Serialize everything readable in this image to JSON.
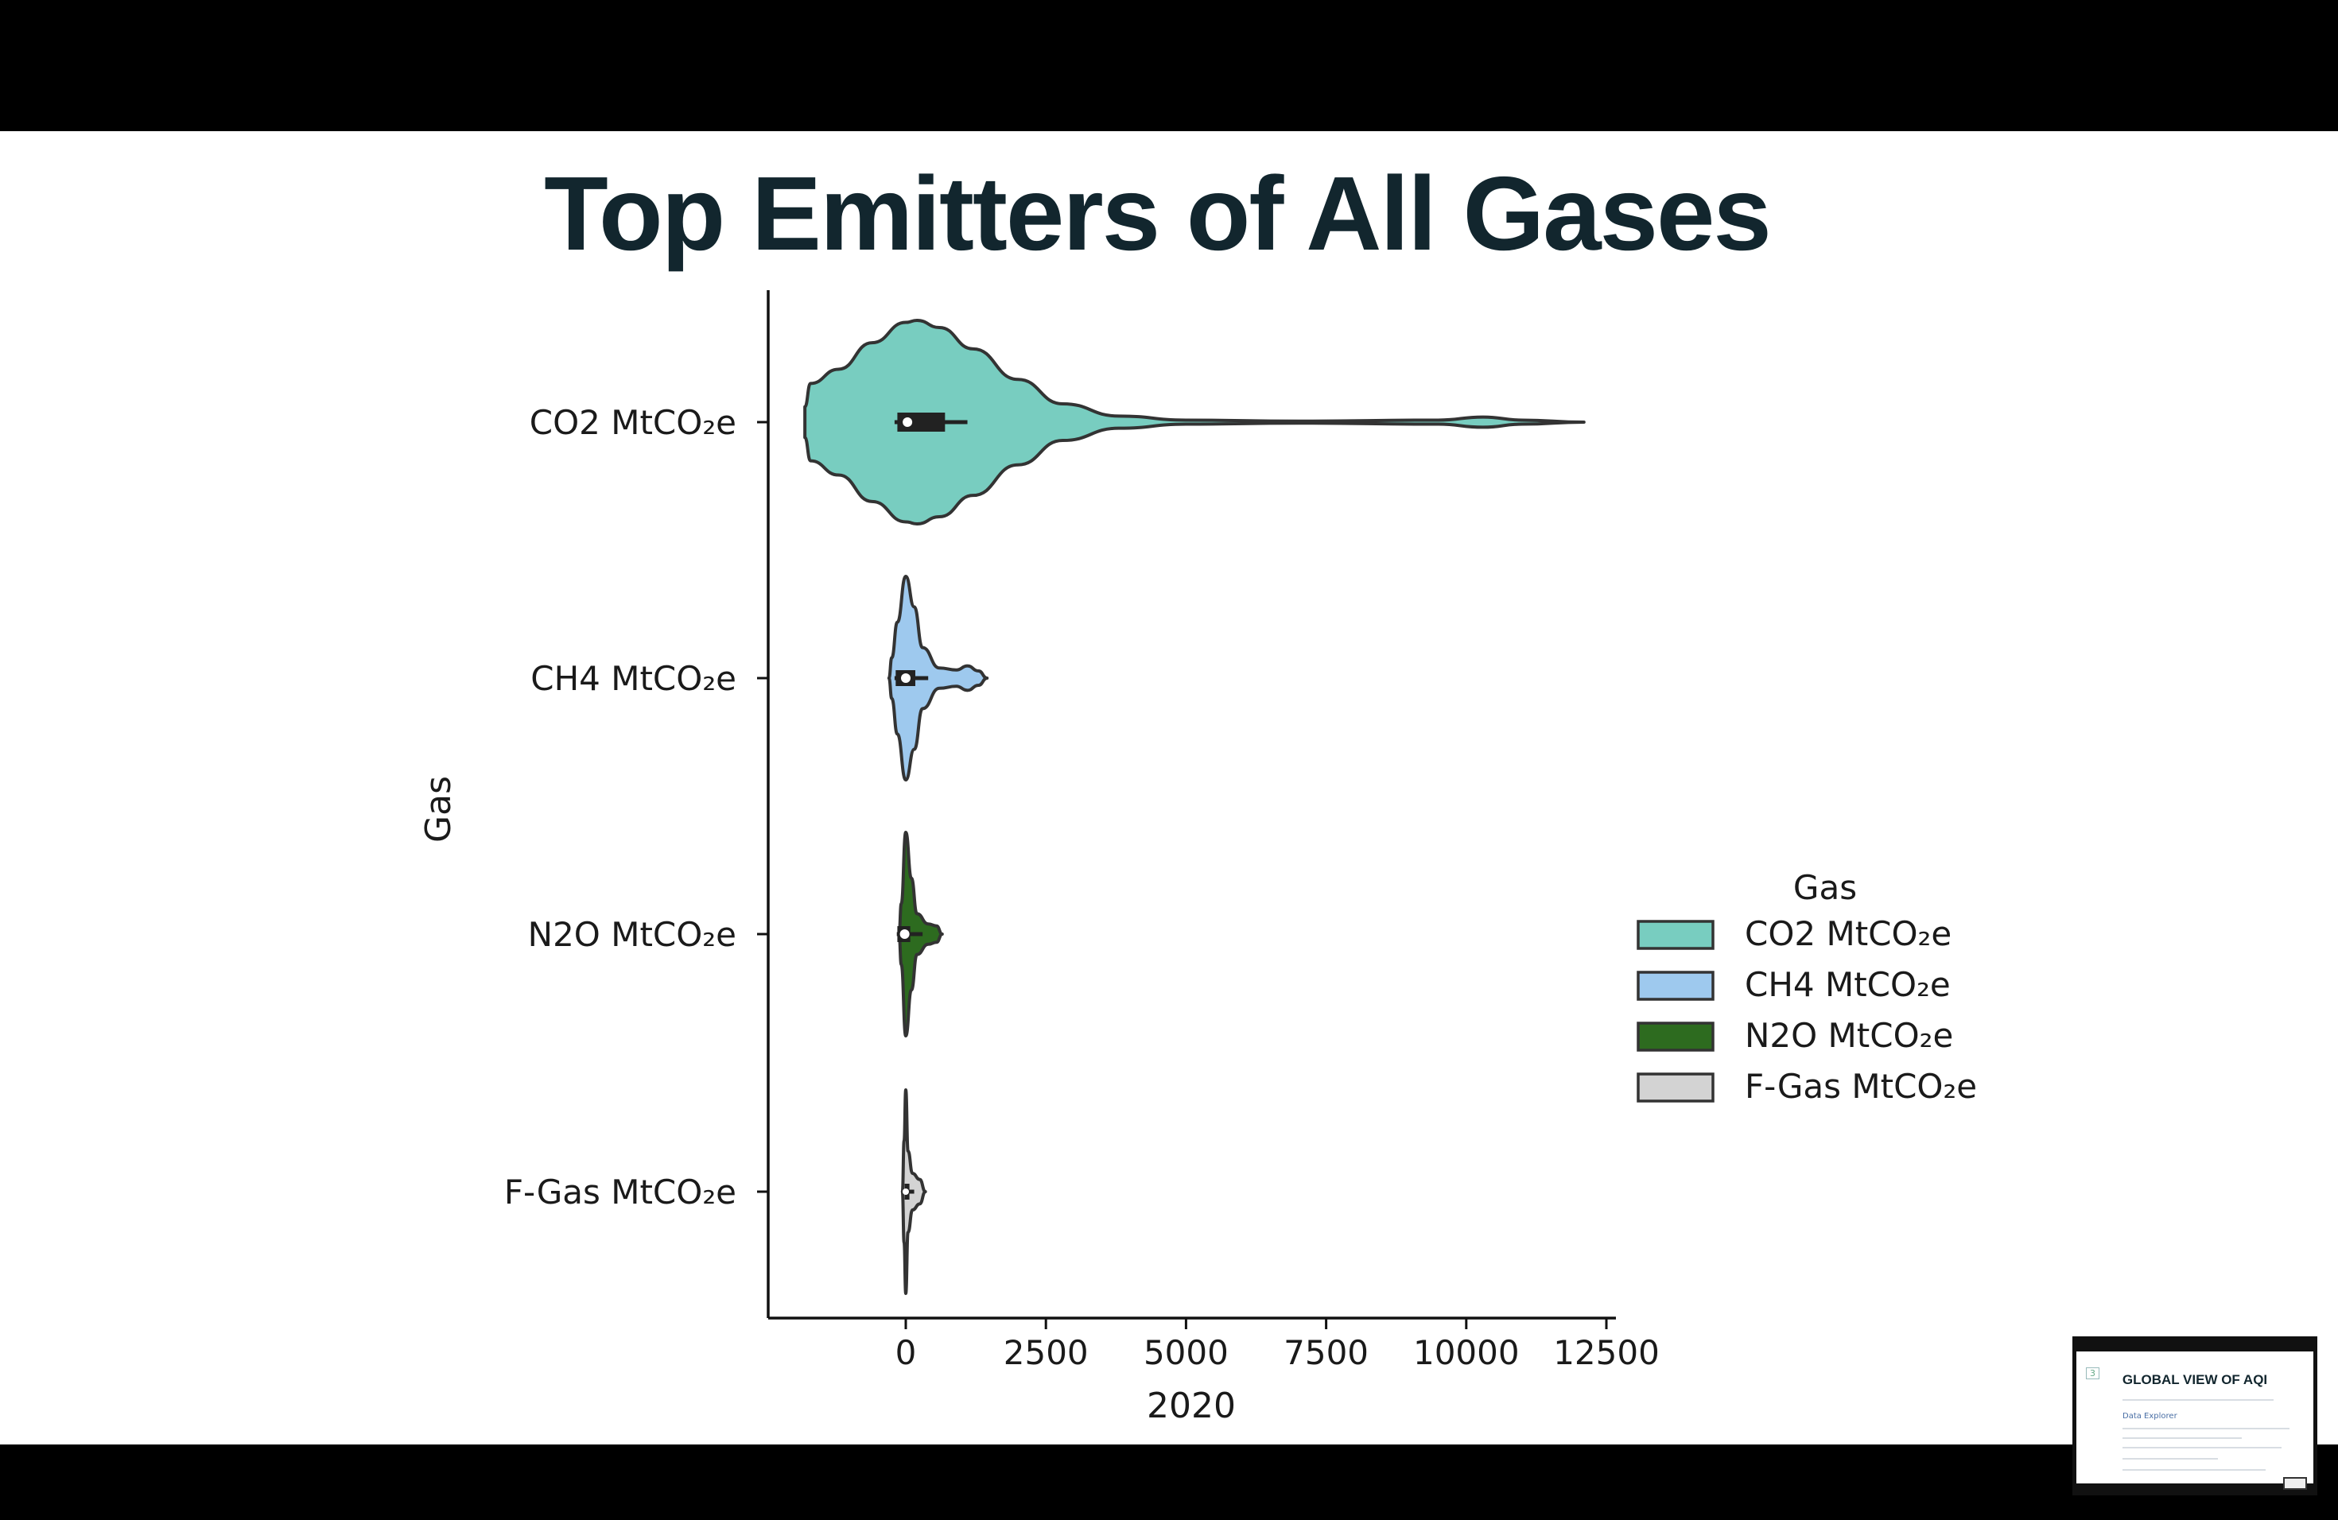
{
  "slide": {
    "title": "Top Emitters of All Gases"
  },
  "thumbnail": {
    "number": "3",
    "title": "GLOBAL VIEW OF AQI",
    "subtitle": "Data Explorer"
  },
  "chart_data": {
    "type": "violin",
    "orientation": "horizontal",
    "xlabel": "2020",
    "ylabel": "Gas",
    "xlim": [
      -2500,
      12900
    ],
    "xticks": [
      0,
      2500,
      5000,
      7500,
      10000,
      12500
    ],
    "xtick_labels": [
      "0",
      "2500",
      "5000",
      "7500",
      "10000",
      "12500"
    ],
    "categories": [
      "CO2 MtCO₂e",
      "CH4 MtCO₂e",
      "N2O MtCO₂e",
      "F-Gas MtCO₂e"
    ],
    "legend": {
      "title": "Gas",
      "placement": "right",
      "entries": [
        "CO2 MtCO₂e",
        "CH4 MtCO₂e",
        "N2O MtCO₂e",
        "F-Gas MtCO₂e"
      ]
    },
    "series": [
      {
        "name": "CO2 MtCO₂e",
        "color": "#78cdc0",
        "range": [
          -1800,
          12100
        ],
        "box": {
          "q1": -150,
          "median": 30,
          "q3": 700,
          "whisker_low": -200,
          "whisker_high": 1100
        },
        "density": [
          [
            -1800,
            0.15
          ],
          [
            -1700,
            0.38
          ],
          [
            -1200,
            0.52
          ],
          [
            -600,
            0.78
          ],
          [
            0,
            0.98
          ],
          [
            200,
            1.0
          ],
          [
            600,
            0.93
          ],
          [
            1200,
            0.72
          ],
          [
            2000,
            0.42
          ],
          [
            2800,
            0.18
          ],
          [
            3800,
            0.06
          ],
          [
            5000,
            0.02
          ],
          [
            7000,
            0.01
          ],
          [
            9500,
            0.02
          ],
          [
            10300,
            0.05
          ],
          [
            11000,
            0.02
          ],
          [
            12100,
            0.0
          ]
        ]
      },
      {
        "name": "CH4 MtCO₂e",
        "color": "#9ec9ee",
        "range": [
          -300,
          1450
        ],
        "box": {
          "q1": -180,
          "median": 0,
          "q3": 170,
          "whisker_low": -200,
          "whisker_high": 400
        },
        "density": [
          [
            -300,
            0.0
          ],
          [
            -250,
            0.2
          ],
          [
            -150,
            0.55
          ],
          [
            0,
            1.0
          ],
          [
            150,
            0.7
          ],
          [
            300,
            0.3
          ],
          [
            600,
            0.1
          ],
          [
            900,
            0.08
          ],
          [
            1100,
            0.12
          ],
          [
            1300,
            0.07
          ],
          [
            1450,
            0.0
          ]
        ]
      },
      {
        "name": "N2O MtCO₂e",
        "color": "#2d6b1f",
        "range": [
          -120,
          650
        ],
        "box": {
          "q1": -150,
          "median": -20,
          "q3": 80,
          "whisker_low": -160,
          "whisker_high": 300
        },
        "density": [
          [
            -120,
            0.0
          ],
          [
            -80,
            0.3
          ],
          [
            0,
            1.0
          ],
          [
            100,
            0.55
          ],
          [
            200,
            0.2
          ],
          [
            400,
            0.1
          ],
          [
            550,
            0.08
          ],
          [
            650,
            0.0
          ]
        ]
      },
      {
        "name": "F-Gas MtCO₂e",
        "color": "#d3d3d3",
        "range": [
          -60,
          350
        ],
        "box": {
          "q1": -20,
          "median": 0,
          "q3": 20,
          "whisker_low": -40,
          "whisker_high": 150
        },
        "density": [
          [
            -60,
            0.0
          ],
          [
            -30,
            0.5
          ],
          [
            0,
            1.0
          ],
          [
            40,
            0.4
          ],
          [
            120,
            0.18
          ],
          [
            250,
            0.12
          ],
          [
            350,
            0.0
          ]
        ]
      }
    ]
  }
}
